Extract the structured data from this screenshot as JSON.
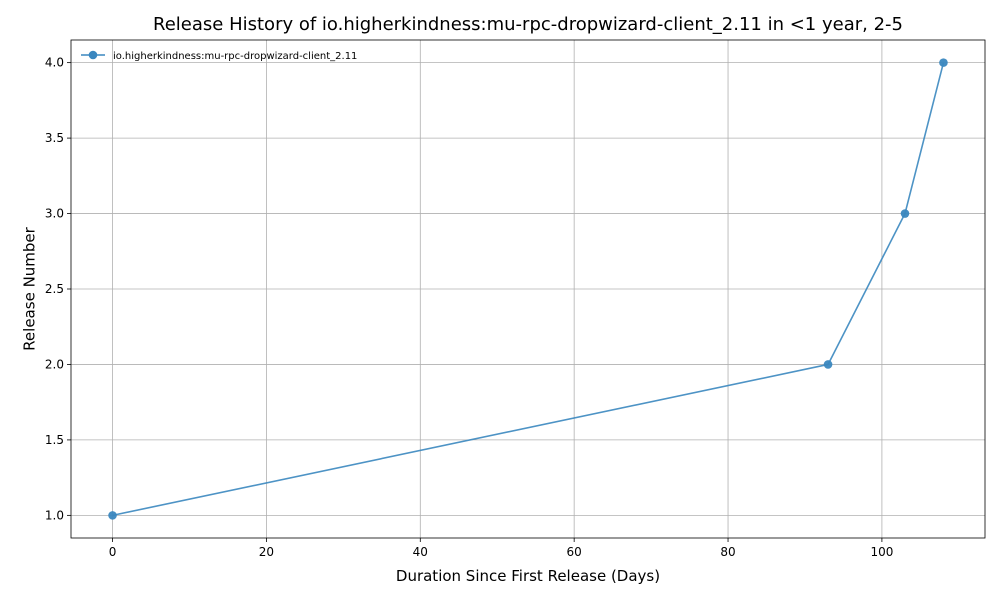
{
  "chart_data": {
    "type": "line",
    "title": "Release History of io.higherkindness:mu-rpc-dropwizard-client_2.11 in <1 year, 2-5",
    "xlabel": "Duration Since First Release (Days)",
    "ylabel": "Release Number",
    "xlim": [
      -5.4,
      113.4
    ],
    "ylim": [
      0.85,
      4.15
    ],
    "xticks": [
      0,
      20,
      40,
      60,
      80,
      100
    ],
    "xtick_labels": [
      "0",
      "20",
      "40",
      "60",
      "80",
      "100"
    ],
    "yticks": [
      1.0,
      1.5,
      2.0,
      2.5,
      3.0,
      3.5,
      4.0
    ],
    "ytick_labels": [
      "1.0",
      "1.5",
      "2.0",
      "2.5",
      "3.0",
      "3.5",
      "4.0"
    ],
    "grid": true,
    "legend_position": "upper-left",
    "series": [
      {
        "name": "io.higherkindness:mu-rpc-dropwizard-client_2.11",
        "color": "#3a87bf",
        "marker": "circle",
        "x": [
          0,
          93,
          103,
          108
        ],
        "y": [
          1,
          2,
          3,
          4
        ]
      }
    ]
  }
}
